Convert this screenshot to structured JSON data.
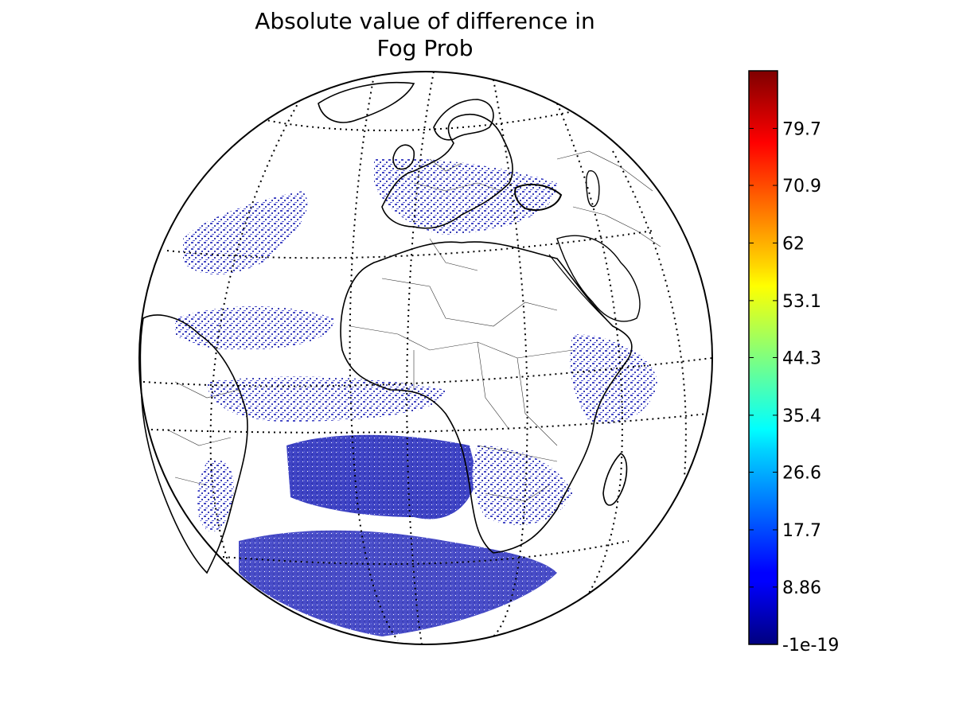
{
  "title": {
    "line1": "Absolute value of difference in",
    "line2": "Fog Prob"
  },
  "map": {
    "projection": "orthographic",
    "land_fill": "#ffffff",
    "coastline_color": "#000000",
    "graticule_style": "dotted",
    "data_color_low": "#3a3fbf"
  },
  "colorbar": {
    "colormap": "jet",
    "min": -1e-19,
    "max": 88.6,
    "orientation": "vertical",
    "ticks": [
      {
        "value": -1e-19,
        "label": "-1e-19"
      },
      {
        "value": 8.86,
        "label": "8.86"
      },
      {
        "value": 17.7,
        "label": "17.7"
      },
      {
        "value": 26.6,
        "label": "26.6"
      },
      {
        "value": 35.4,
        "label": "35.4"
      },
      {
        "value": 44.3,
        "label": "44.3"
      },
      {
        "value": 53.1,
        "label": "53.1"
      },
      {
        "value": 62,
        "label": "62"
      },
      {
        "value": 70.9,
        "label": "70.9"
      },
      {
        "value": 79.7,
        "label": "79.7"
      }
    ]
  }
}
